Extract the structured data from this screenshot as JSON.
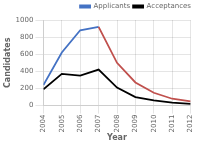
{
  "chart_data": {
    "type": "line",
    "x": [
      2004,
      2005,
      2006,
      2007,
      2008,
      2009,
      2010,
      2011,
      2012
    ],
    "series": [
      {
        "name": "Applicants",
        "color": "#4472C4",
        "colors": [
          "#4472C4",
          "#4472C4",
          "#4472C4",
          "#4472C4",
          "#C0504D",
          "#C0504D",
          "#C0504D",
          "#C0504D",
          "#C0504D"
        ],
        "values": [
          240,
          620,
          880,
          920,
          500,
          270,
          150,
          80,
          50
        ]
      },
      {
        "name": "Acceptances",
        "color": "#000000",
        "values": [
          190,
          370,
          350,
          420,
          210,
          100,
          60,
          35,
          20
        ]
      }
    ],
    "xlabel": "Year",
    "ylabel": "Candidates",
    "xlim": [
      2004,
      2012
    ],
    "xticks": [
      2004,
      2005,
      2006,
      2007,
      2008,
      2009,
      2010,
      2011,
      2012
    ],
    "ylim": [
      0,
      1000
    ],
    "yticks": [
      0,
      200,
      400,
      600,
      800,
      1000
    ],
    "grid": true,
    "legend": "upper right"
  }
}
